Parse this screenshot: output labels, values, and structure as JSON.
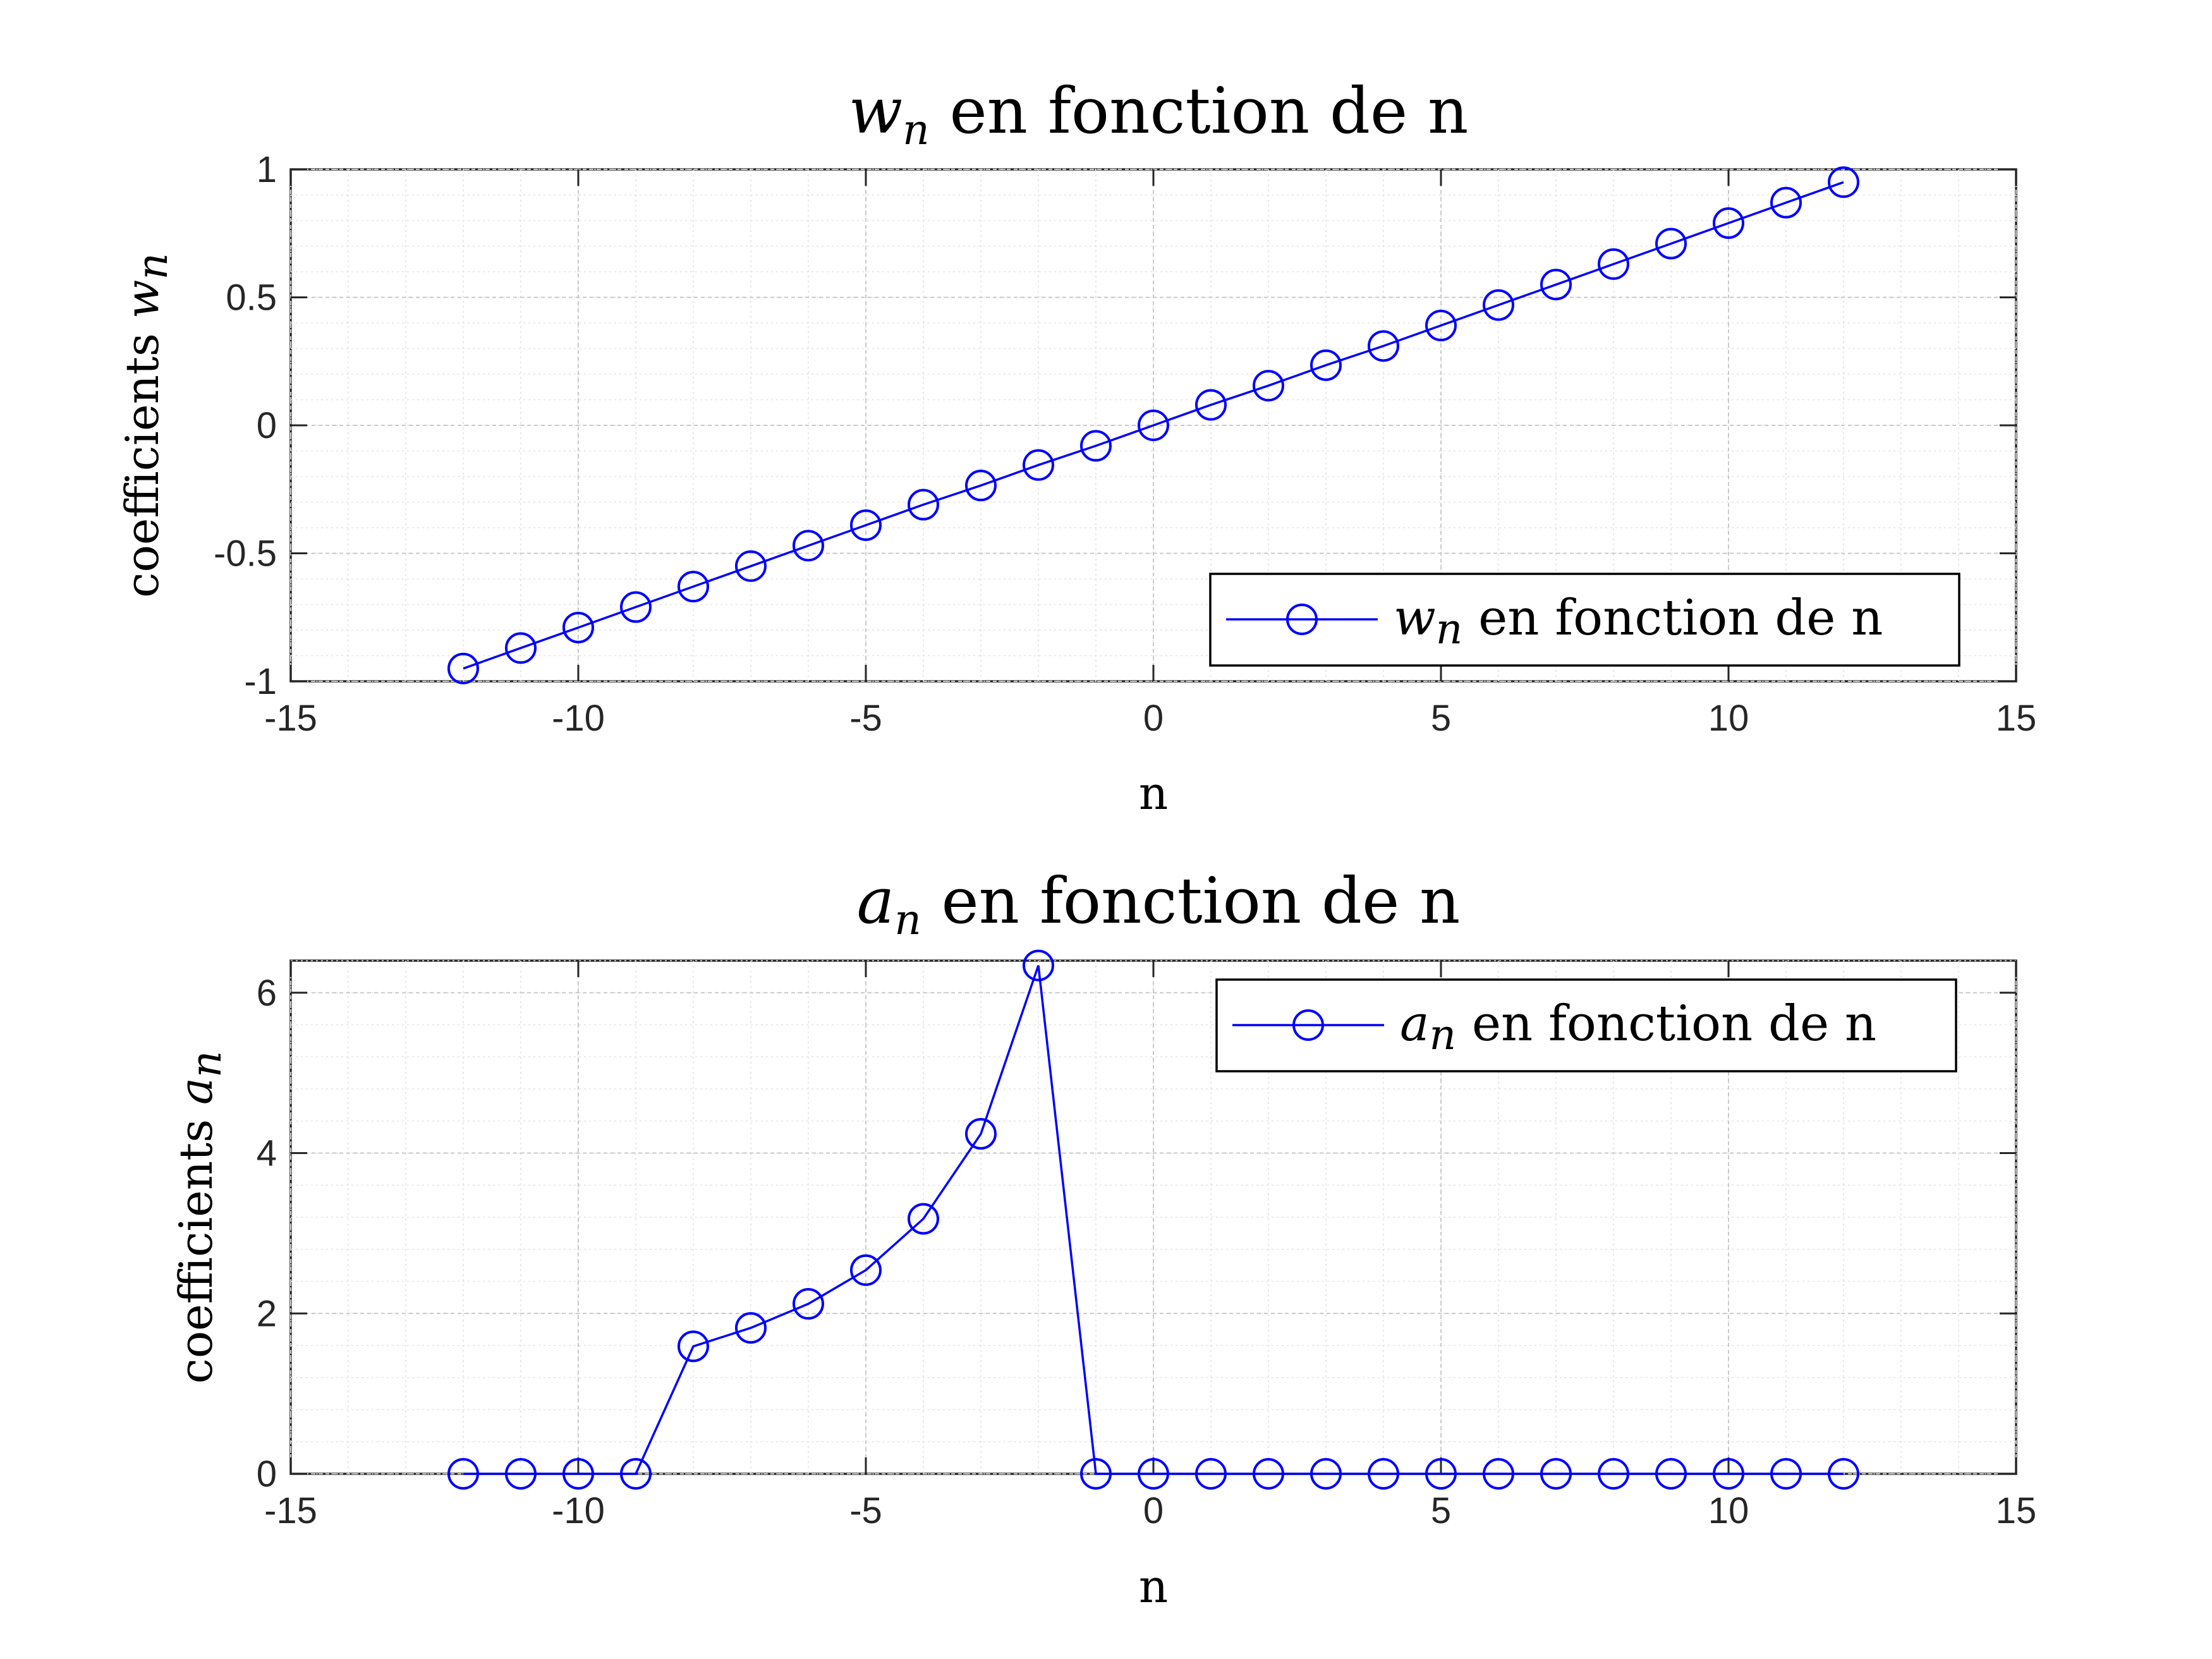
{
  "chart_data": [
    {
      "type": "line",
      "title": {
        "var": "w",
        "sub": "n",
        "rest": " en fonction de n"
      },
      "xlabel": "n",
      "ylabel": {
        "prefix": "coefficients ",
        "var": "w",
        "sub": "n"
      },
      "xlim": [
        -15,
        15
      ],
      "ylim": [
        -1,
        1
      ],
      "xticks": [
        -15,
        -10,
        -5,
        0,
        5,
        10,
        15
      ],
      "yticks": [
        -1,
        -0.5,
        0,
        0.5,
        1
      ],
      "grid": true,
      "minor_grid": true,
      "legend": {
        "location": "bottom-right",
        "label": {
          "var": "w",
          "sub": "n",
          "rest": " en fonction de n"
        }
      },
      "series": [
        {
          "marker": "circle",
          "color": "#0000ff",
          "x": [
            -12,
            -11,
            -10,
            -9,
            -8,
            -7,
            -6,
            -5,
            -4,
            -3,
            -2,
            -1,
            0,
            1,
            2,
            3,
            4,
            5,
            6,
            7,
            8,
            9,
            10,
            11,
            12
          ],
          "y": [
            -0.95,
            -0.87,
            -0.79,
            -0.71,
            -0.63,
            -0.55,
            -0.47,
            -0.39,
            -0.31,
            -0.235,
            -0.155,
            -0.08,
            0,
            0.08,
            0.155,
            0.235,
            0.31,
            0.39,
            0.47,
            0.55,
            0.63,
            0.71,
            0.79,
            0.87,
            0.95
          ]
        }
      ]
    },
    {
      "type": "line",
      "title": {
        "var": "a",
        "sub": "n",
        "rest": " en fonction de n"
      },
      "xlabel": "n",
      "ylabel": {
        "prefix": "coefficients ",
        "var": "a",
        "sub": "n"
      },
      "xlim": [
        -15,
        15
      ],
      "ylim": [
        0,
        6.4
      ],
      "xticks": [
        -15,
        -10,
        -5,
        0,
        5,
        10,
        15
      ],
      "yticks": [
        0,
        2,
        4,
        6
      ],
      "grid": true,
      "minor_grid": true,
      "legend": {
        "location": "top-right",
        "label": {
          "var": "a",
          "sub": "n",
          "rest": " en fonction de n"
        }
      },
      "series": [
        {
          "marker": "circle",
          "color": "#0000ff",
          "x": [
            -12,
            -11,
            -10,
            -9,
            -8,
            -7,
            -6,
            -5,
            -4,
            -3,
            -2,
            -1,
            0,
            1,
            2,
            3,
            4,
            5,
            6,
            7,
            8,
            9,
            10,
            11,
            12
          ],
          "y": [
            0,
            0,
            0,
            0,
            1.59,
            1.82,
            2.12,
            2.54,
            3.18,
            4.24,
            6.34,
            0,
            0,
            0,
            0,
            0,
            0,
            0,
            0,
            0,
            0,
            0,
            0,
            0,
            0
          ]
        }
      ]
    }
  ]
}
